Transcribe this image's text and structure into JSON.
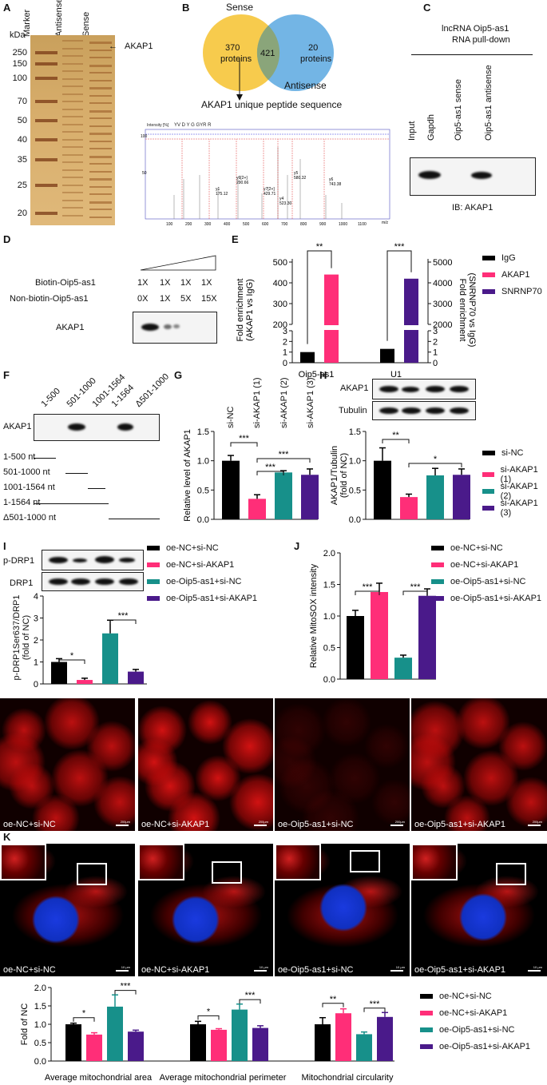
{
  "panels": {
    "A": "A",
    "B": "B",
    "C": "C",
    "D": "D",
    "E": "E",
    "F": "F",
    "G": "G",
    "H": "H",
    "I": "I",
    "J": "J",
    "K": "K"
  },
  "colors": {
    "black": "#000000",
    "pink": "#ff2e78",
    "teal": "#17908a",
    "purple": "#4a1a8a",
    "yellow": "#f7c843",
    "blue": "#5aa8e0"
  },
  "a": {
    "unit": "kDa",
    "lanes": [
      "Marker",
      "Antisense",
      "Sense"
    ],
    "ticks": [
      "250",
      "150",
      "100",
      "70",
      "50",
      "40",
      "35",
      "25",
      "20"
    ],
    "arrow_label": "AKAP1"
  },
  "b": {
    "venn_left_title": "Sense",
    "venn_left_value": "370",
    "venn_left_unit": "proteins",
    "venn_overlap": "421",
    "venn_right_value": "20",
    "venn_right_unit": "proteins",
    "venn_right_title": "Antisense",
    "peptide_title": "AKAP1 unique peptide sequence",
    "spec_ylabel": "Intensity [%]",
    "spec_seq": "YV D Y G GYR R",
    "spec_yticks": [
      "100",
      "50"
    ],
    "spec_xticks": [
      "100",
      "200",
      "300",
      "400",
      "500",
      "600",
      "700",
      "800",
      "900",
      "1000",
      "1100"
    ],
    "spec_xunit": "m/z",
    "peaks": [
      "y1",
      "y1\n175.12",
      "y6[2+]\n290.66",
      "y7[2+]\n429.71",
      "y4\n523.30",
      "y5\n580.32",
      "y6\n743.38"
    ]
  },
  "c": {
    "title_line1": "lncRNA Oip5-as1",
    "title_line2": "RNA pull-down",
    "lanes": [
      "Input",
      "Gapdh",
      "Oip5-as1 sense",
      "Oip5-as1 antisense"
    ],
    "ib": "IB: AKAP1"
  },
  "d": {
    "row1_label": "Biotin-Oip5-as1",
    "row1_values": [
      "1X",
      "1X",
      "1X",
      "1X"
    ],
    "row2_label": "Non-biotin-Oip5-as1",
    "row2_values": [
      "0X",
      "1X",
      "5X",
      "15X"
    ],
    "blot_label": "AKAP1"
  },
  "f": {
    "lanes": [
      "1-500",
      "501-1000",
      "1001-1564",
      "1-1564",
      "Δ501-1000"
    ],
    "blot_label": "AKAP1",
    "constructs": [
      "1-500 nt",
      "501-1000 nt",
      "1001-1564 nt",
      "1-1564 nt",
      "Δ501-1000 nt"
    ]
  },
  "h": {
    "blot_labels": [
      "AKAP1",
      "Tubulin"
    ]
  },
  "i": {
    "blot_labels": [
      "p-DRP1",
      "DRP1"
    ],
    "ylabel": "p-DRP1Ser637/DRP1",
    "ylabel2": "(fold of NC)"
  },
  "legends": {
    "e": [
      "IgG",
      "AKAP1",
      "SNRNP70"
    ],
    "gh": [
      "si-NC",
      "si-AKAP1 (1)",
      "si-AKAP1 (2)",
      "si-AKAP1 (3)"
    ],
    "ij": [
      "oe-NC+si-NC",
      "oe-NC+si-AKAP1",
      "oe-Oip5-as1+si-NC",
      "oe-Oip5-as1+si-AKAP1"
    ]
  },
  "micro1": {
    "captions": [
      "oe-NC+si-NC",
      "oe-NC+si-AKAP1",
      "oe-Oip5-as1+si-NC",
      "oe-Oip5-as1+si-AKAP1"
    ],
    "scale": "200μm"
  },
  "micro2": {
    "captions": [
      "oe-NC+si-NC",
      "oe-NC+si-AKAP1",
      "oe-Oip5-as1+si-NC",
      "oe-Oip5-as1+si-AKAP1"
    ],
    "scale": "10 μm"
  },
  "chart_data": [
    {
      "id": "E",
      "type": "bar",
      "ylabel": "Fold enrichment\n(AKAP1 vs IgG)",
      "ylabel_right": "Fold enrichment\n(SNRNP70 vs IgG)",
      "categories": [
        "Oip5-as1",
        "U1"
      ],
      "yticks_left": [
        "0",
        "1",
        "2",
        "3",
        "200",
        "300",
        "400",
        "500"
      ],
      "yticks_right": [
        "0",
        "1",
        "2",
        "3",
        "2000",
        "3000",
        "4000",
        "5000"
      ],
      "axis_break": true,
      "series": [
        {
          "name": "IgG",
          "values": [
            1.0,
            1.3
          ]
        },
        {
          "name": "AKAP1",
          "values": [
            440,
            null
          ]
        },
        {
          "name": "SNRNP70",
          "values": [
            null,
            4200
          ]
        }
      ],
      "significance": [
        "**",
        "***"
      ]
    },
    {
      "id": "G",
      "type": "bar",
      "ylabel": "Relative level of AKAP1",
      "ylim": [
        0,
        1.5
      ],
      "yticks": [
        "0.0",
        "0.5",
        "1.0",
        "1.5"
      ],
      "categories": [
        "si-NC",
        "si-AKAP1 (1)",
        "si-AKAP1 (2)",
        "si-AKAP1 (3)"
      ],
      "values": [
        1.0,
        0.35,
        0.8,
        0.76
      ],
      "errors": [
        0.09,
        0.07,
        0.03,
        0.1
      ],
      "significance": [
        "***",
        "***",
        "***"
      ]
    },
    {
      "id": "H",
      "type": "bar",
      "ylabel": "AKAP1/Tubulin\n(fold of NC)",
      "ylim": [
        0,
        1.5
      ],
      "yticks": [
        "0.0",
        "0.5",
        "1.0",
        "1.5"
      ],
      "categories": [
        "si-NC",
        "si-AKAP1 (1)",
        "si-AKAP1 (2)",
        "si-AKAP1 (3)"
      ],
      "values": [
        1.0,
        0.38,
        0.75,
        0.76
      ],
      "errors": [
        0.22,
        0.05,
        0.12,
        0.1
      ],
      "significance": [
        "**",
        "*"
      ]
    },
    {
      "id": "I",
      "type": "bar",
      "ylim": [
        0,
        4
      ],
      "yticks": [
        "0",
        "1",
        "2",
        "3",
        "4"
      ],
      "categories": [
        "oe-NC+si-NC",
        "oe-NC+si-AKAP1",
        "oe-Oip5-as1+si-NC",
        "oe-Oip5-as1+si-AKAP1"
      ],
      "values": [
        1.0,
        0.18,
        2.3,
        0.56
      ],
      "errors": [
        0.15,
        0.08,
        0.6,
        0.1
      ],
      "significance": [
        "*",
        "***"
      ]
    },
    {
      "id": "J",
      "type": "bar",
      "ylabel": "Relative MitoSOX intensity",
      "ylim": [
        0,
        2.0
      ],
      "yticks": [
        "0.0",
        "0.5",
        "1.0",
        "1.5",
        "2.0"
      ],
      "categories": [
        "oe-NC+si-NC",
        "oe-NC+si-AKAP1",
        "oe-Oip5-as1+si-NC",
        "oe-Oip5-as1+si-AKAP1"
      ],
      "values": [
        1.0,
        1.38,
        0.34,
        1.32
      ],
      "errors": [
        0.09,
        0.14,
        0.04,
        0.11
      ],
      "significance": [
        "***",
        "***"
      ]
    },
    {
      "id": "K",
      "type": "bar",
      "ylabel": "Fold of NC",
      "ylim": [
        0,
        2.0
      ],
      "yticks": [
        "0.0",
        "0.5",
        "1.0",
        "1.5",
        "2.0"
      ],
      "categories": [
        "Average mitochondrial area",
        "Average mitochondrial perimeter",
        "Mitochondrial circularity"
      ],
      "series": [
        {
          "name": "oe-NC+si-NC",
          "values": [
            1.0,
            1.0,
            1.0
          ],
          "errors": [
            0.03,
            0.08,
            0.18
          ]
        },
        {
          "name": "oe-NC+si-AKAP1",
          "values": [
            0.72,
            0.85,
            1.3
          ],
          "errors": [
            0.05,
            0.03,
            0.12
          ]
        },
        {
          "name": "oe-Oip5-as1+si-NC",
          "values": [
            1.48,
            1.4,
            0.73
          ],
          "errors": [
            0.32,
            0.15,
            0.06
          ]
        },
        {
          "name": "oe-Oip5-as1+si-AKAP1",
          "values": [
            0.8,
            0.9,
            1.2
          ],
          "errors": [
            0.04,
            0.06,
            0.12
          ]
        }
      ],
      "significance": [
        [
          "*",
          "***"
        ],
        [
          "*",
          "***"
        ],
        [
          "**",
          "***"
        ]
      ]
    }
  ]
}
